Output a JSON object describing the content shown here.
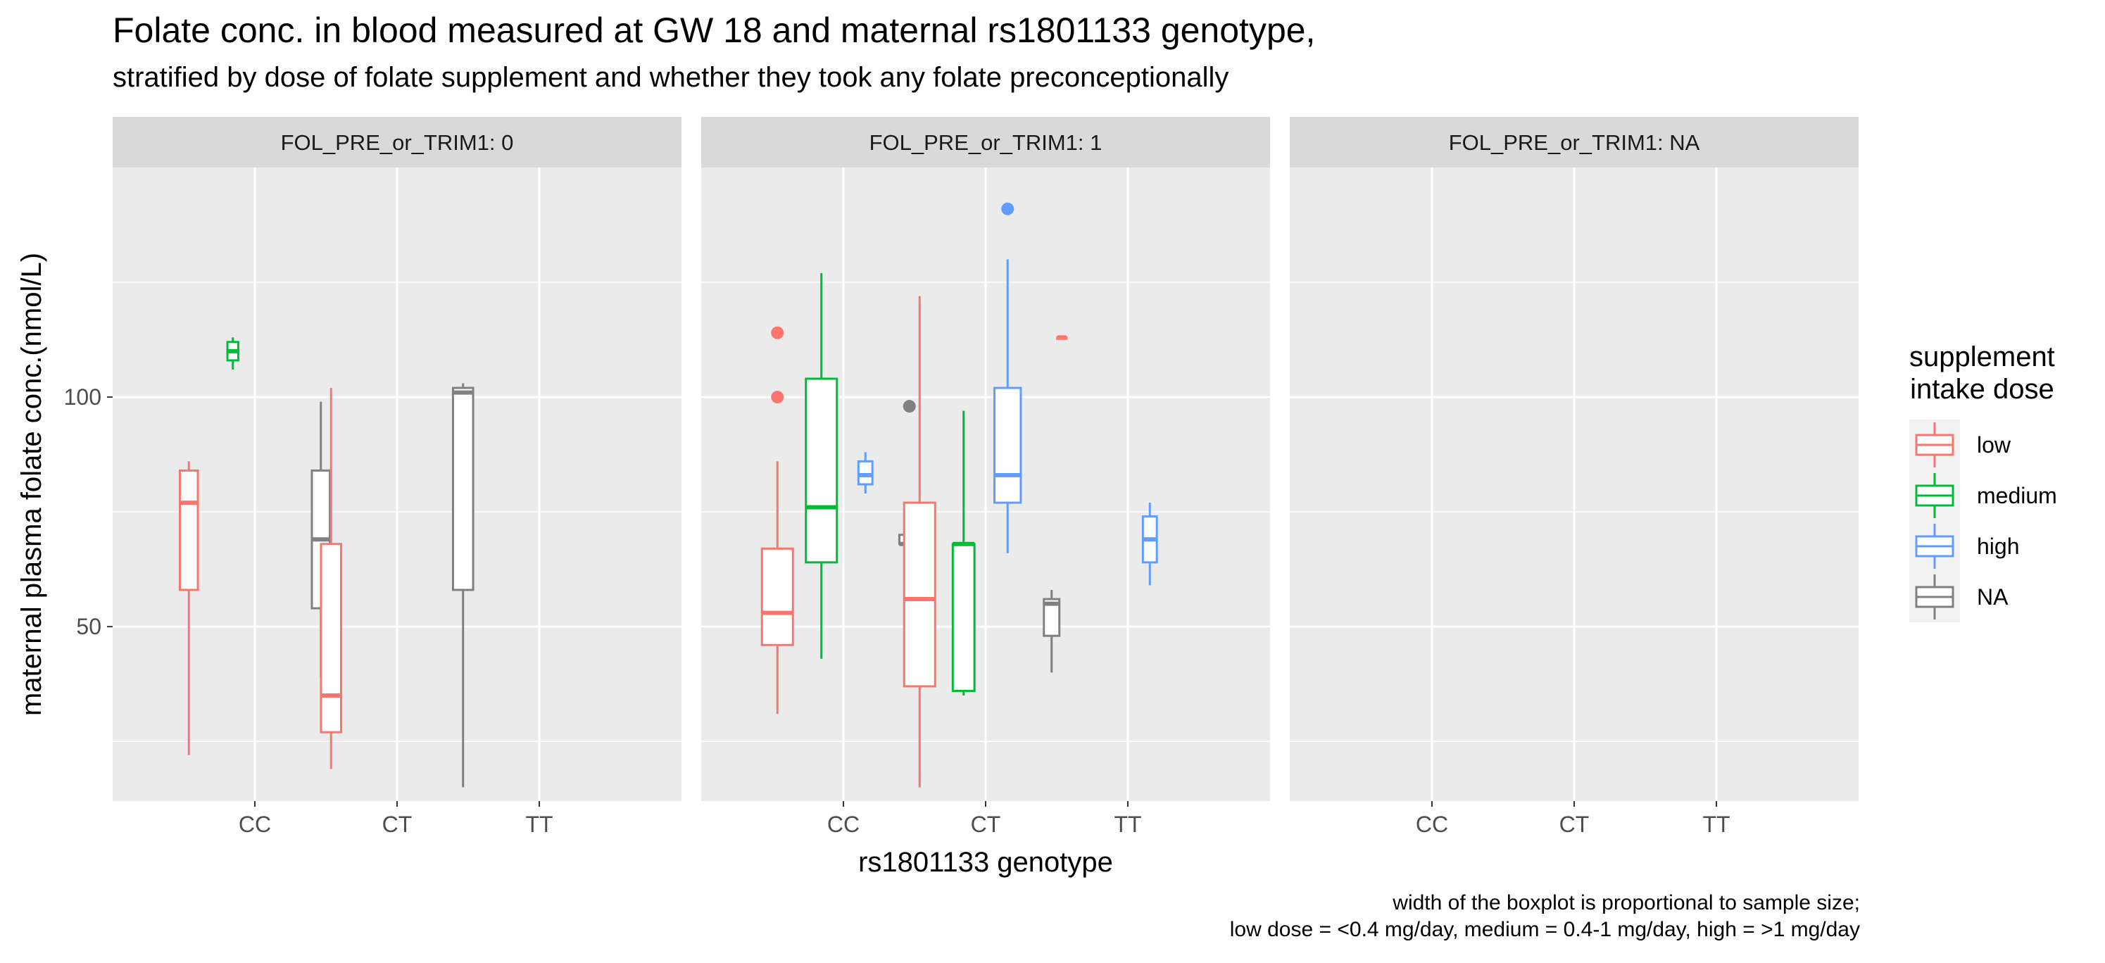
{
  "chart_data": {
    "type": "boxplot",
    "title": "Folate conc. in blood measured at GW 18 and maternal rs1801133 genotype,",
    "subtitle": "stratified by dose of folate supplement and whether they took any folate preconceptionally",
    "xlabel": "rs1801133 genotype",
    "ylabel": "maternal plasma folate conc.(nmol/L)",
    "ylim": [
      12,
      150
    ],
    "yticks": [
      50,
      100
    ],
    "categories": [
      "CC",
      "CT",
      "TT"
    ],
    "grid": true,
    "caption": [
      "width of the boxplot is proportional to sample size;",
      "low dose = <0.4 mg/day, medium = 0.4-1 mg/day, high = >1 mg/day"
    ],
    "legend": {
      "title": [
        "supplement",
        "intake dose"
      ],
      "position": "right",
      "items": [
        {
          "label": "low",
          "color": "#F8766D"
        },
        {
          "label": "medium",
          "color": "#00BA38"
        },
        {
          "label": "high",
          "color": "#619CFF"
        },
        {
          "label": "NA",
          "color": "#808080"
        }
      ]
    },
    "panels": [
      {
        "label": "FOL_PRE_or_TRIM1: 0",
        "boxes": [
          {
            "category": "CC",
            "group": "low",
            "min": 22,
            "q1": 58,
            "median": 77,
            "q3": 84,
            "max": 86,
            "outliers": [],
            "rel_width": 0.58
          },
          {
            "category": "CC",
            "group": "medium",
            "min": 106,
            "q1": 108,
            "median": 110,
            "q3": 112,
            "max": 113,
            "outliers": [],
            "rel_width": 0.35
          },
          {
            "category": "CC",
            "group": "NA",
            "min": 39,
            "q1": 54,
            "median": 69,
            "q3": 84,
            "max": 99,
            "outliers": [],
            "rel_width": 0.58
          },
          {
            "category": "CT",
            "group": "low",
            "min": 19,
            "q1": 27,
            "median": 35,
            "q3": 68,
            "max": 102,
            "outliers": [],
            "rel_width": 0.65
          },
          {
            "category": "CT",
            "group": "NA",
            "min": 15,
            "q1": 58,
            "median": 101,
            "q3": 102,
            "max": 103,
            "outliers": [],
            "rel_width": 0.65
          }
        ]
      },
      {
        "label": "FOL_PRE_or_TRIM1: 1",
        "boxes": [
          {
            "category": "CC",
            "group": "low",
            "min": 31,
            "q1": 46,
            "median": 53,
            "q3": 67,
            "max": 86,
            "outliers": [
              100,
              114
            ],
            "rel_width": 1.0
          },
          {
            "category": "CC",
            "group": "medium",
            "min": 43,
            "q1": 64,
            "median": 76,
            "q3": 104,
            "max": 127,
            "outliers": [],
            "rel_width": 1.0
          },
          {
            "category": "CC",
            "group": "high",
            "min": 79,
            "q1": 81,
            "median": 83,
            "q3": 86,
            "max": 88,
            "outliers": [],
            "rel_width": 0.45
          },
          {
            "category": "CC",
            "group": "NA",
            "min": 67,
            "q1": 68,
            "median": 68,
            "q3": 70,
            "max": 70,
            "outliers": [
              57,
              98
            ],
            "rel_width": 0.65
          },
          {
            "category": "CT",
            "group": "low",
            "min": 15,
            "q1": 37,
            "median": 56,
            "q3": 77,
            "max": 122,
            "outliers": [],
            "rel_width": 1.0
          },
          {
            "category": "CT",
            "group": "medium",
            "min": 35,
            "q1": 36,
            "median": 68,
            "q3": 68,
            "max": 97,
            "outliers": [],
            "rel_width": 0.7
          },
          {
            "category": "CT",
            "group": "high",
            "min": 66,
            "q1": 77,
            "median": 83,
            "q3": 102,
            "max": 130,
            "outliers": [
              141
            ],
            "rel_width": 0.85
          },
          {
            "category": "CT",
            "group": "NA",
            "min": 40,
            "q1": 48,
            "median": 55,
            "q3": 56,
            "max": 58,
            "outliers": [],
            "rel_width": 0.5
          },
          {
            "category": "TT",
            "group": "low",
            "min": 113,
            "q1": 113,
            "median": 113,
            "q3": 113,
            "max": 113,
            "outliers": [],
            "rel_width": 0.3
          },
          {
            "category": "TT",
            "group": "high",
            "min": 59,
            "q1": 64,
            "median": 69,
            "q3": 74,
            "max": 77,
            "outliers": [],
            "rel_width": 0.45
          }
        ]
      },
      {
        "label": "FOL_PRE_or_TRIM1: NA",
        "boxes": []
      }
    ]
  }
}
